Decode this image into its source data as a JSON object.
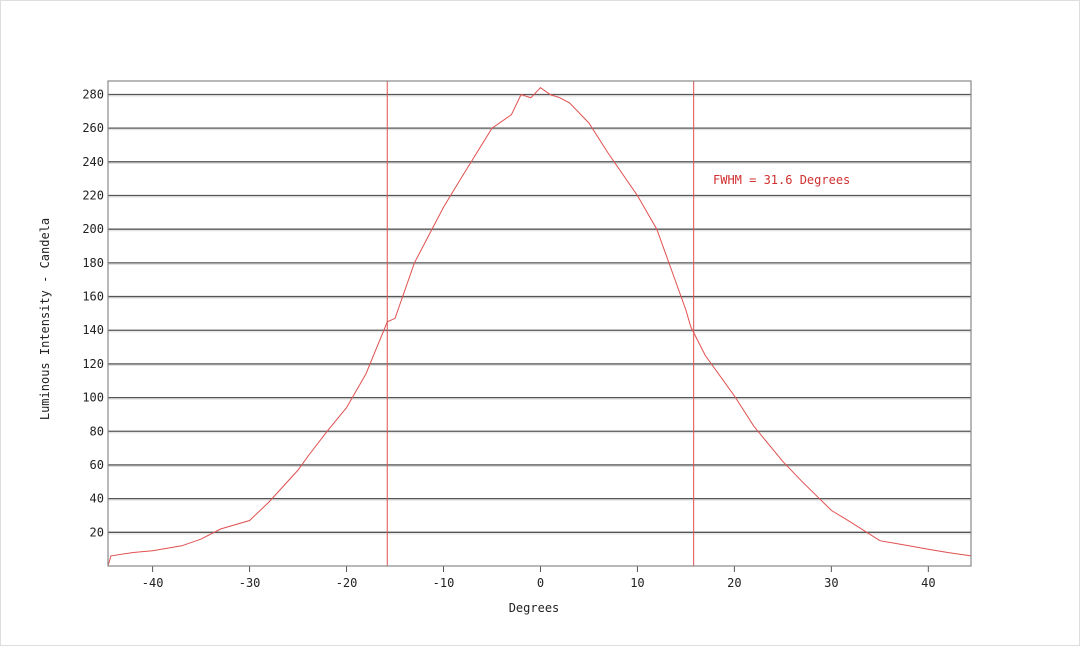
{
  "chart_data": {
    "type": "line",
    "title": "",
    "xlabel": "Degrees",
    "ylabel": "Luminous Intensity - Candela",
    "xlim": [
      -44.6,
      44.4
    ],
    "ylim": [
      0,
      288
    ],
    "xticks": [
      -40,
      -30,
      -20,
      -10,
      0,
      10,
      20,
      30,
      40
    ],
    "yticks": [
      20,
      40,
      60,
      80,
      100,
      120,
      140,
      160,
      180,
      200,
      220,
      240,
      260,
      280
    ],
    "grid": "horizontal",
    "line_color": "#e05050",
    "series": [
      {
        "x": [
          -44.6,
          -44.3,
          -42,
          -40,
          -37,
          -35,
          -33,
          -30,
          -28,
          -25,
          -24,
          -22,
          -20,
          -18,
          -15.8,
          -15,
          -13,
          -10,
          -8,
          -5,
          -3,
          -2,
          -1,
          0,
          1,
          2,
          3,
          5,
          7,
          10,
          12,
          15,
          15.5,
          17,
          20,
          22,
          25,
          27,
          30,
          32,
          35,
          38,
          40,
          42,
          44.4
        ],
        "y": [
          0,
          6,
          8,
          9,
          12,
          16,
          22,
          27,
          38,
          57,
          65,
          80,
          94,
          114,
          145,
          147,
          180,
          213,
          232,
          260,
          268,
          280,
          278,
          284,
          280,
          278,
          275,
          263,
          245,
          220,
          200,
          152,
          142,
          125,
          101,
          83,
          62,
          50,
          33,
          26,
          15,
          12,
          10,
          8,
          6
        ]
      }
    ],
    "reference_lines": [
      {
        "axis": "x",
        "value": -15.8
      },
      {
        "axis": "x",
        "value": 15.8
      }
    ],
    "annotation": "FWHM = 31.6 Degrees"
  }
}
